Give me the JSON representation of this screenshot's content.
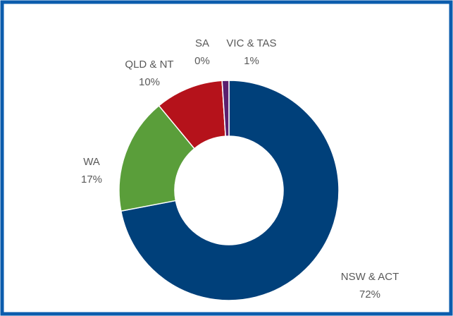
{
  "chart_data": {
    "type": "donut",
    "categories": [
      "NSW & ACT",
      "WA",
      "QLD & NT",
      "SA",
      "VIC & TAS"
    ],
    "values": [
      72,
      17,
      10,
      0,
      1
    ],
    "value_labels": [
      "72%",
      "17%",
      "10%",
      "0%",
      "1%"
    ],
    "colors": [
      "#00407a",
      "#5a9e3a",
      "#b5121b",
      "#e07b00",
      "#5b1f6e"
    ]
  }
}
